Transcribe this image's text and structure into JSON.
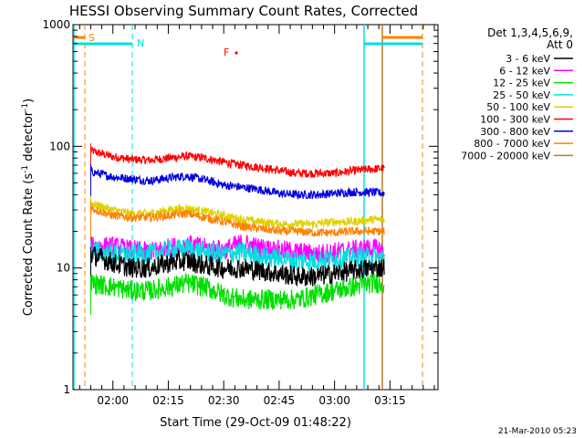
{
  "chart_data": {
    "type": "line",
    "title": "HESSI Observing Summary Count Rates, Corrected",
    "xlabel": "Start Time (29-Oct-09 01:48:22)",
    "ylabel_parts": {
      "main": "Corrected Count Rate (s",
      "sup": "-1",
      "tail": " detector",
      "sup2": "-1",
      "end": ")"
    },
    "x_ticks": [
      "02:00",
      "02:15",
      "02:30",
      "02:45",
      "03:00",
      "03:15"
    ],
    "x_tick_minutes": [
      120,
      135,
      150,
      165,
      180,
      195
    ],
    "xlim_minutes": [
      109.2,
      208.0
    ],
    "y_scale": "log",
    "ylim": [
      1,
      1000
    ],
    "y_ticks": [
      "1",
      "10",
      "100",
      "1000"
    ],
    "y_tick_values": [
      1,
      10,
      100,
      1000
    ],
    "footer": "21-Mar-2010 05:23",
    "legend": {
      "title_line1": "Det 1,3,4,5,6,9,",
      "title_line2": "Att 0",
      "entries": [
        {
          "label": "3 - 6 keV",
          "color": "#000000"
        },
        {
          "label": "6 - 12 keV",
          "color": "#ff00ff"
        },
        {
          "label": "12 - 25 keV",
          "color": "#00e000"
        },
        {
          "label": "25 - 50 keV",
          "color": "#00e0e0"
        },
        {
          "label": "50 - 100 keV",
          "color": "#e0d000"
        },
        {
          "label": "100 - 300 keV",
          "color": "#ff0000"
        },
        {
          "label": "300 - 800 keV",
          "color": "#0000e0"
        },
        {
          "label": "800 - 7000 keV",
          "color": "#ff8000"
        },
        {
          "label": "7000 - 20000 keV",
          "color": "#b08020"
        }
      ]
    },
    "flags": [
      {
        "label": "S",
        "color": "#ff8000"
      },
      {
        "label": "N",
        "color": "#00e0e0"
      },
      {
        "label": "F",
        "color": "#ff0000"
      }
    ],
    "data_window_minutes": [
      114.0,
      193.5
    ],
    "series": [
      {
        "name": "100 - 300 keV",
        "color": "#ff0000",
        "x": [
          114,
          120,
          125,
          130,
          135,
          140,
          145,
          150,
          155,
          160,
          165,
          170,
          175,
          180,
          185,
          190,
          193.5
        ],
        "y": [
          92,
          82,
          78,
          77,
          80,
          83,
          80,
          74,
          70,
          67,
          63,
          60,
          60,
          60,
          63,
          65,
          66
        ]
      },
      {
        "name": "300 - 800 keV",
        "color": "#0000e0",
        "x": [
          114,
          120,
          125,
          130,
          135,
          140,
          145,
          150,
          155,
          160,
          165,
          170,
          175,
          180,
          185,
          190,
          193.5
        ],
        "y": [
          62,
          56,
          54,
          52,
          55,
          57,
          53,
          48,
          46,
          44,
          41,
          40,
          40,
          41,
          42,
          42,
          41
        ]
      },
      {
        "name": "50 - 100 keV",
        "color": "#e0d000",
        "x": [
          114,
          120,
          125,
          130,
          135,
          140,
          145,
          150,
          155,
          160,
          165,
          170,
          175,
          180,
          185,
          190,
          193.5
        ],
        "y": [
          34,
          30,
          28,
          28,
          30,
          31,
          29,
          27,
          25,
          24,
          23,
          23,
          23,
          24,
          24,
          25,
          25
        ]
      },
      {
        "name": "800 - 7000 keV",
        "color": "#ff8000",
        "x": [
          114,
          120,
          125,
          130,
          135,
          140,
          145,
          150,
          155,
          160,
          165,
          170,
          175,
          180,
          185,
          190,
          193.5
        ],
        "y": [
          31,
          27,
          26,
          26,
          27,
          28,
          26,
          24,
          22,
          21,
          20,
          20,
          19.5,
          19.5,
          20,
          20,
          20
        ]
      },
      {
        "name": "6 - 12 keV",
        "color": "#ff00ff",
        "x": [
          114,
          120,
          125,
          130,
          135,
          140,
          145,
          150,
          155,
          160,
          165,
          170,
          175,
          180,
          185,
          190,
          193.5
        ],
        "y": [
          15,
          15,
          14,
          13.5,
          14.5,
          15.5,
          14.5,
          14,
          16,
          14.5,
          14,
          13.5,
          13,
          13.5,
          14,
          14.5,
          14
        ]
      },
      {
        "name": "25 - 50 keV",
        "color": "#00e0e0",
        "x": [
          114,
          120,
          125,
          130,
          135,
          140,
          145,
          150,
          155,
          160,
          165,
          170,
          175,
          180,
          185,
          190,
          193.5
        ],
        "y": [
          14,
          13,
          13,
          13,
          14,
          14.5,
          13.5,
          13,
          13.5,
          12.5,
          12,
          11.5,
          11.5,
          12,
          12,
          12.5,
          12
        ]
      },
      {
        "name": "3 - 6 keV",
        "color": "#000000",
        "x": [
          114,
          120,
          125,
          130,
          135,
          140,
          145,
          150,
          155,
          160,
          165,
          170,
          175,
          180,
          185,
          190,
          193.5
        ],
        "y": [
          13,
          11,
          10,
          10,
          11,
          11.5,
          10.5,
          10,
          10,
          9.5,
          9,
          8.5,
          8.5,
          9,
          9.5,
          10,
          10
        ]
      },
      {
        "name": "12 - 25 keV",
        "color": "#00e000",
        "x": [
          114,
          120,
          125,
          130,
          135,
          140,
          145,
          150,
          155,
          160,
          165,
          170,
          175,
          180,
          185,
          190,
          193.5
        ],
        "y": [
          7.5,
          7,
          6.5,
          6.5,
          7,
          7.5,
          7,
          6,
          5.5,
          5.5,
          5.5,
          5.5,
          6,
          6.5,
          7,
          7.5,
          7.5
        ]
      }
    ]
  }
}
